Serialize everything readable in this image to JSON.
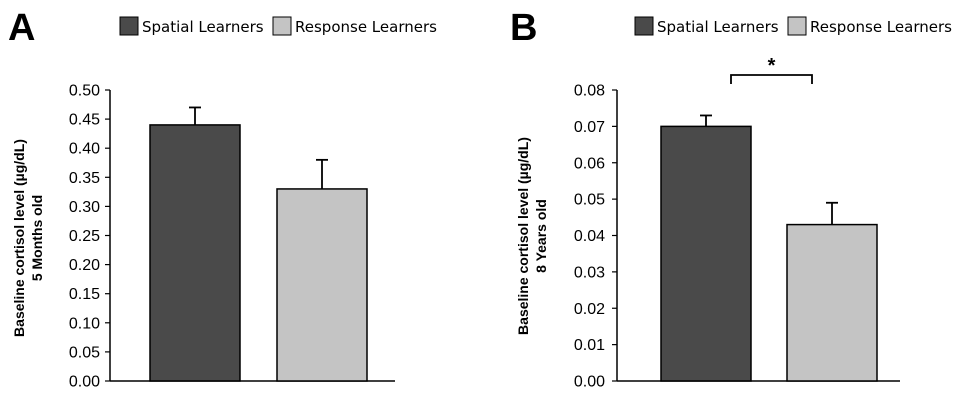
{
  "chart_data": [
    {
      "type": "bar",
      "panel": "A",
      "categories": [
        "Spatial Learners",
        "Response Learners"
      ],
      "values": [
        0.44,
        0.33
      ],
      "error": [
        0.03,
        0.05
      ],
      "colors": [
        "#4a4a4a",
        "#c4c4c4"
      ],
      "ylabel": [
        "Baseline cortisol level (µg/dL)",
        "5 Months old"
      ],
      "ylim": [
        0,
        0.5
      ],
      "yticks": [
        "0.00",
        "0.05",
        "0.10",
        "0.15",
        "0.20",
        "0.25",
        "0.30",
        "0.35",
        "0.40",
        "0.45",
        "0.50"
      ],
      "legend": [
        "Spatial Learners",
        "Response Learners"
      ],
      "legend_position": "top",
      "significance": null,
      "grid": false
    },
    {
      "type": "bar",
      "panel": "B",
      "categories": [
        "Spatial Learners",
        "Response Learners"
      ],
      "values": [
        0.07,
        0.043
      ],
      "error": [
        0.003,
        0.006
      ],
      "colors": [
        "#4a4a4a",
        "#c4c4c4"
      ],
      "ylabel": [
        "Baseline cortisol level (µg/dL)",
        "8 Years old"
      ],
      "ylim": [
        0,
        0.08
      ],
      "yticks": [
        "0.00",
        "0.01",
        "0.02",
        "0.03",
        "0.04",
        "0.05",
        "0.06",
        "0.07",
        "0.08"
      ],
      "legend": [
        "Spatial Learners",
        "Response Learners"
      ],
      "legend_position": "top",
      "significance": "*",
      "grid": false
    }
  ]
}
